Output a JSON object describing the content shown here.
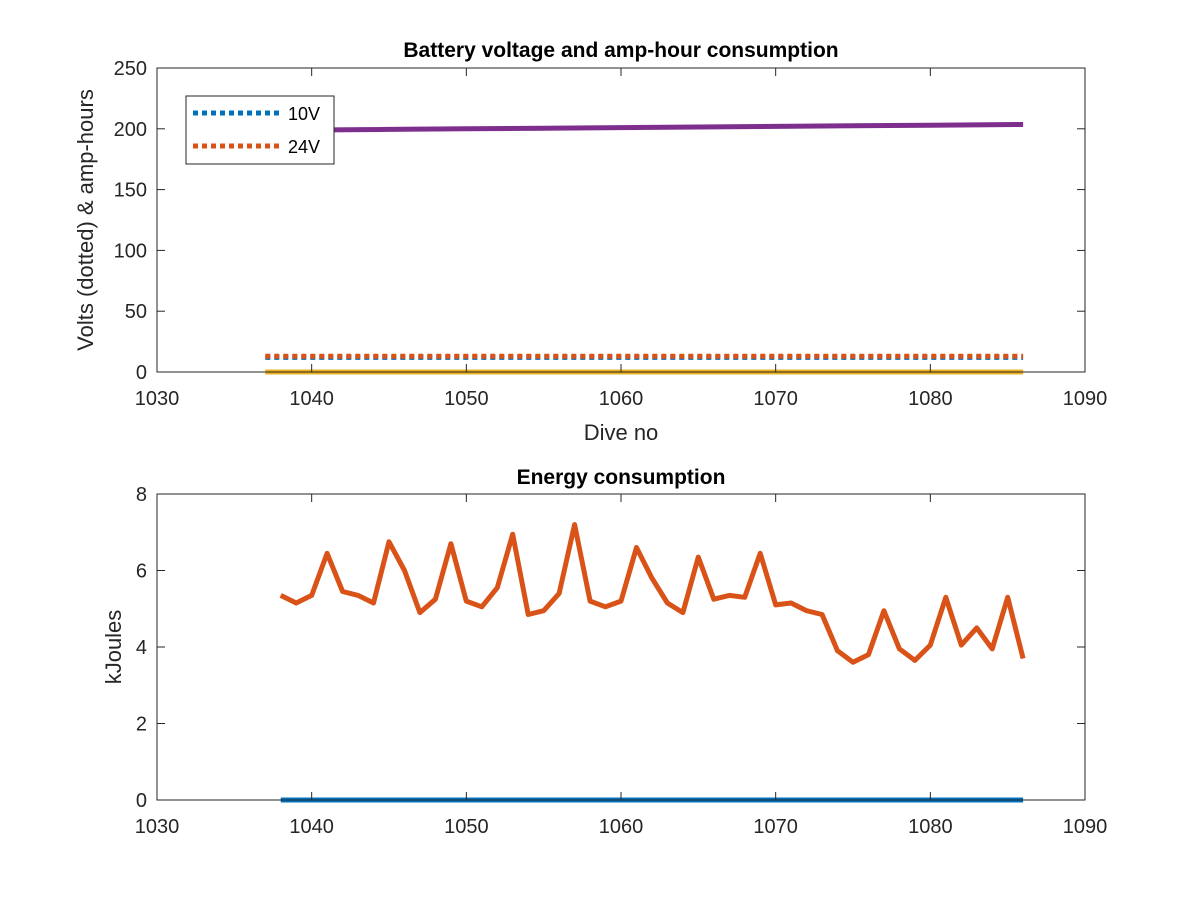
{
  "chart_data": [
    {
      "type": "line",
      "title": "Battery voltage and amp-hour consumption",
      "xlabel": "Dive no",
      "ylabel": "Volts (dotted) & amp-hours",
      "xlim": [
        1030,
        1090
      ],
      "ylim": [
        0,
        250
      ],
      "xticks": [
        "1030",
        "1040",
        "1050",
        "1060",
        "1070",
        "1080",
        "1090"
      ],
      "yticks": [
        "0",
        "50",
        "100",
        "150",
        "200",
        "250"
      ],
      "grid": false,
      "legend": {
        "placement": "top-left",
        "entries": [
          {
            "label": "10V",
            "color": "#0072BD",
            "style": "dotted"
          },
          {
            "label": "24V",
            "color": "#D95319",
            "style": "dotted"
          }
        ]
      },
      "series": [
        {
          "name": "10V",
          "color": "#0072BD",
          "style": "dotted",
          "x": [
            1037,
            1086
          ],
          "y": [
            12,
            12
          ]
        },
        {
          "name": "24V",
          "color": "#D95319",
          "style": "dotted",
          "x": [
            1037,
            1086
          ],
          "y": [
            13,
            13
          ]
        },
        {
          "color": "#EDB120",
          "style": "solid",
          "x": [
            1037,
            1086
          ],
          "y": [
            0,
            0
          ]
        },
        {
          "color": "#7E2F8E",
          "style": "solid",
          "x": [
            1040,
            1045,
            1050,
            1055,
            1060,
            1065,
            1070,
            1075,
            1080,
            1086
          ],
          "y": [
            199,
            199.5,
            200,
            200.5,
            201,
            201.5,
            202,
            202.5,
            203,
            203.5
          ]
        }
      ]
    },
    {
      "type": "line",
      "title": "Energy consumption",
      "xlabel": "",
      "ylabel": "kJoules",
      "xlim": [
        1030,
        1090
      ],
      "ylim": [
        0,
        8
      ],
      "xticks": [
        "1030",
        "1040",
        "1050",
        "1060",
        "1070",
        "1080",
        "1090"
      ],
      "yticks": [
        "0",
        "2",
        "4",
        "6",
        "8"
      ],
      "grid": false,
      "series": [
        {
          "color": "#D95319",
          "style": "solid",
          "x": [
            1038,
            1039,
            1040,
            1041,
            1042,
            1043,
            1044,
            1045,
            1046,
            1047,
            1048,
            1049,
            1050,
            1051,
            1052,
            1053,
            1054,
            1055,
            1056,
            1057,
            1058,
            1059,
            1060,
            1061,
            1062,
            1063,
            1064,
            1065,
            1066,
            1067,
            1068,
            1069,
            1070,
            1071,
            1072,
            1073,
            1074,
            1075,
            1076,
            1077,
            1078,
            1079,
            1080,
            1081,
            1082,
            1083,
            1084,
            1085,
            1086
          ],
          "y": [
            5.35,
            5.15,
            5.35,
            6.45,
            5.45,
            5.35,
            5.15,
            6.75,
            6.0,
            4.9,
            5.25,
            6.7,
            5.2,
            5.05,
            5.55,
            6.95,
            4.85,
            4.95,
            5.4,
            7.2,
            5.2,
            5.05,
            5.2,
            6.6,
            5.8,
            5.15,
            4.9,
            6.35,
            5.25,
            5.35,
            5.3,
            6.45,
            5.1,
            5.15,
            4.95,
            4.85,
            3.9,
            3.6,
            3.8,
            4.95,
            3.95,
            3.65,
            4.05,
            5.3,
            4.05,
            4.5,
            3.95,
            5.3,
            3.7
          ]
        },
        {
          "color": "#0072BD",
          "style": "solid",
          "x": [
            1038,
            1086
          ],
          "y": [
            0,
            0
          ]
        }
      ]
    }
  ]
}
